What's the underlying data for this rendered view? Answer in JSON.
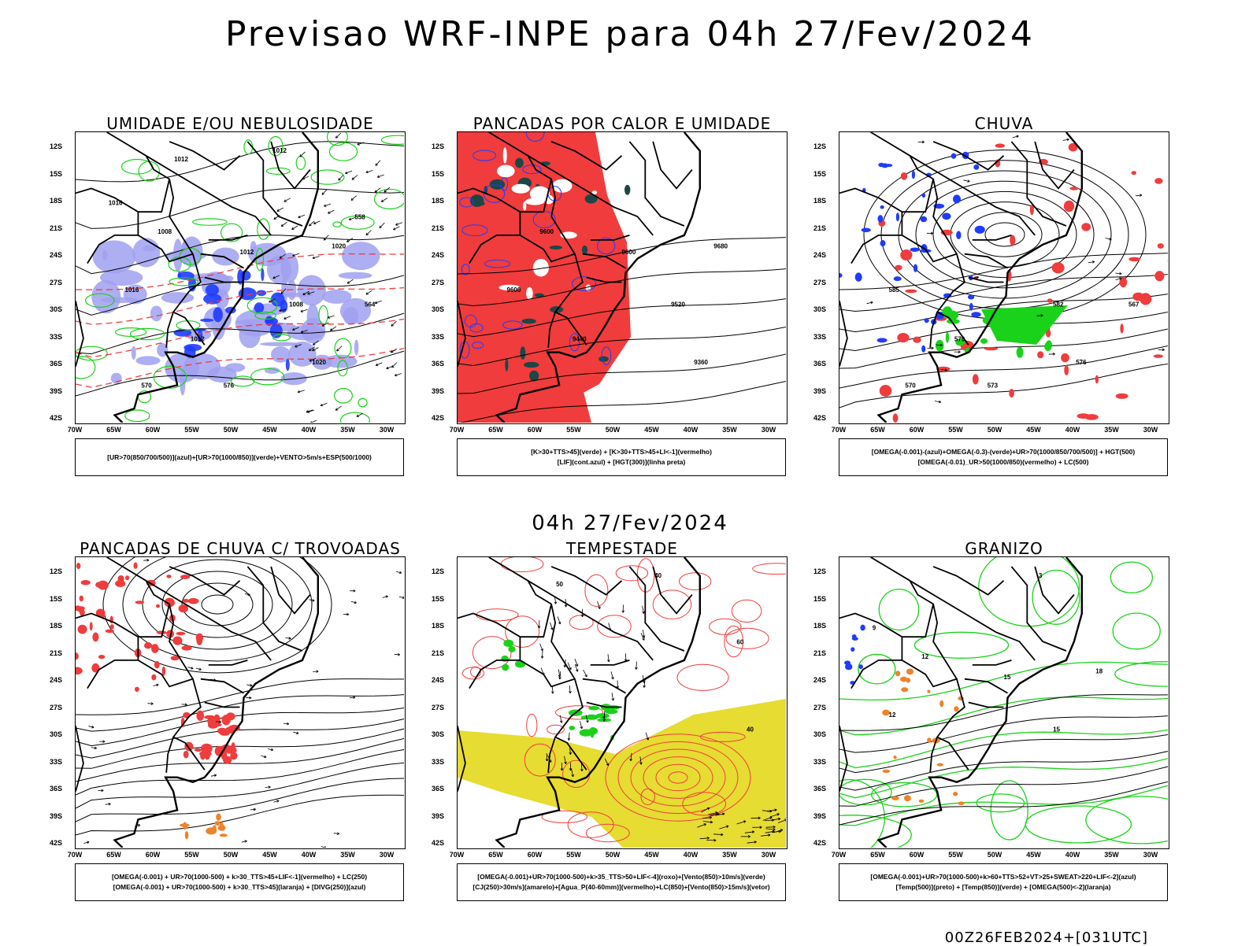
{
  "header": {
    "title": "Previsao WRF-INPE  para 04h 27/Fev/2024"
  },
  "middle_title": "04h 27/Fev/2024",
  "footer": {
    "run_label": "00Z26FEB2024+[031UTC]"
  },
  "axes": {
    "lat_labels": [
      "12S",
      "15S",
      "18S",
      "21S",
      "24S",
      "27S",
      "30S",
      "33S",
      "36S",
      "39S",
      "42S"
    ],
    "lon_labels": [
      "70W",
      "65W",
      "60W",
      "55W",
      "50W",
      "45W",
      "40W",
      "35W",
      "30W"
    ]
  },
  "colors": {
    "green": "#19d219",
    "red": "#f03c3c",
    "blue": "#1e3cff",
    "light_blue": "#a0a0f0",
    "yellow": "#e6dc32",
    "orange": "#f08228",
    "dark_teal": "#1e4646"
  },
  "panels": [
    {
      "title": "UMIDADE E/OU NEBULOSIDADE",
      "legend": [
        "[UR>70(850/700/500)](azul)+[UR>70(1000/850)](verde)+VENTO>5m/s+ESP(500/1000)"
      ],
      "contour_labels": [
        "1012",
        "1012",
        "1016",
        "1008",
        "1012",
        "1020",
        "1016",
        "1008",
        "1012",
        "1020",
        "576",
        "570",
        "564",
        "558"
      ]
    },
    {
      "title": "PANCADAS POR CALOR E UMIDADE",
      "legend": [
        "[K>30+TTS>45](verde) + [K>30+TTS>45+LI<-1](vermelho)",
        "[LIF](cont.azul) + [HGT(300)](linha preta)"
      ],
      "contour_labels": [
        "9600",
        "9600",
        "9680",
        "9600",
        "9520",
        "9440",
        "9360"
      ]
    },
    {
      "title": "CHUVA",
      "legend": [
        "[OMEGA(-0.001)-(azul)+OMEGA(-0.3)-(verde)+UR>70(1000/850/700/500)] + HGT(500)",
        "[OMEGA(-0.01)_UR>50(1000/850)(vermelho) + LC(500)"
      ],
      "contour_labels": [
        "585",
        "582",
        "579",
        "576",
        "573",
        "570",
        "567"
      ]
    },
    {
      "title": "PANCADAS DE CHUVA C/ TROVOADAS",
      "legend": [
        "[OMEGA(-0.001) + UR>70(1000-500) + k>30_TTS>45+LIF<-1](vermelho) + LC(250)",
        "[OMEGA(-0.001) + UR>70(1000-500) + k>30_TTS>45](laranja) + [DIVG(250)](azul)"
      ],
      "contour_labels": []
    },
    {
      "title": "TEMPESTADE",
      "legend": [
        "[OMEGA(-0.001)+UR>70(1000-500)+k>35_TTS>50+LIF<-4](roxo)+[Vento(850)>10m/s](verde)",
        "[CJ(250)>30m/s](amarelo)+[Agua_P(40-60mm)](vermelho)+LC(850)+[Vento(850)>15m/s](vetor)"
      ],
      "contour_labels": [
        "40",
        "60",
        "50",
        "40"
      ]
    },
    {
      "title": "GRANIZO",
      "legend": [
        "[OMEGA(-0.001)+UR>70(1000-500)+k>60+TTS>52+VT>25+SWEAT>220+LIF<-2](azul)",
        "[Temp(500)](preto) + [Temp(850)](verde) + [OMEGA(500)<-2](laranja)"
      ],
      "contour_labels": [
        "-3",
        "9",
        "12",
        "15",
        "18",
        "12",
        "15"
      ]
    }
  ]
}
